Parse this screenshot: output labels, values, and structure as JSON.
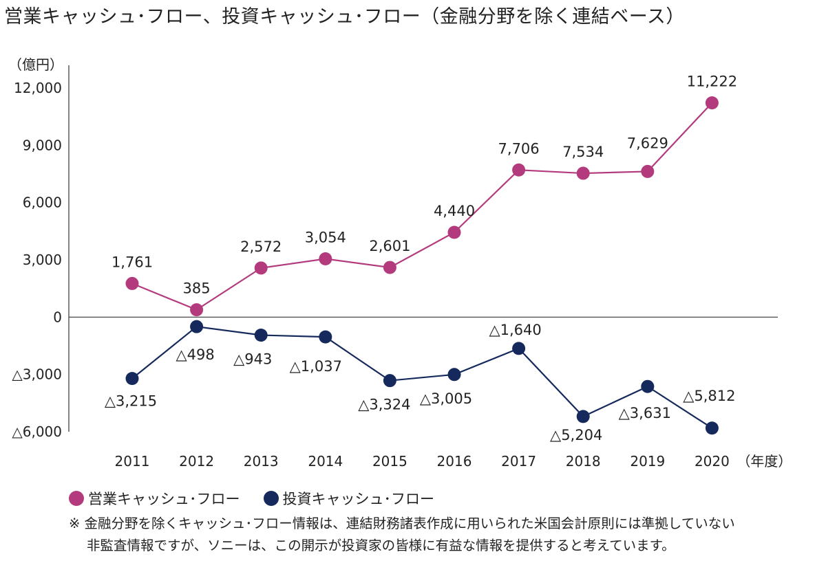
{
  "title": "営業キャッシュ･フロー、投資キャッシュ･フロー（金融分野を除く連結ベース）",
  "chart_data": {
    "type": "line",
    "title": "営業キャッシュ･フロー、投資キャッシュ･フロー（金融分野を除く連結ベース）",
    "y_unit_label": "（億円）",
    "x_unit_label": "（年度）",
    "categories": [
      "2011",
      "2012",
      "2013",
      "2014",
      "2015",
      "2016",
      "2017",
      "2018",
      "2019",
      "2020"
    ],
    "ylim": [
      -6000,
      12000
    ],
    "y_ticks": [
      12000,
      9000,
      6000,
      3000,
      0,
      -3000,
      -6000
    ],
    "y_tick_labels": [
      "12,000",
      "9,000",
      "6,000",
      "3,000",
      "0",
      "△3,000",
      "△6,000"
    ],
    "grid": false,
    "legend_position": "bottom-left",
    "series": [
      {
        "name": "営業キャッシュ･フロー",
        "color": "#b23a7d",
        "values": [
          1761,
          385,
          2572,
          3054,
          2601,
          4440,
          7706,
          7534,
          7629,
          11222
        ],
        "labels": [
          "1,761",
          "385",
          "2,572",
          "3,054",
          "2,601",
          "4,440",
          "7,706",
          "7,534",
          "7,629",
          "11,222"
        ]
      },
      {
        "name": "投資キャッシュ･フロー",
        "color": "#15295c",
        "values": [
          -3215,
          -498,
          -943,
          -1037,
          -3324,
          -3005,
          -1640,
          -5204,
          -3631,
          -5812
        ],
        "labels": [
          "△3,215",
          "△498",
          "△943",
          "△1,037",
          "△3,324",
          "△3,005",
          "△1,640",
          "△5,204",
          "△3,631",
          "△5,812"
        ]
      }
    ]
  },
  "note": {
    "line1": "※ 金融分野を除くキャッシュ･フロー情報は、連結財務諸表作成に用いられた米国会計原則には準拠していない",
    "line2": "非監査情報ですが、ソニーは、この開示が投資家の皆様に有益な情報を提供すると考えています。"
  }
}
